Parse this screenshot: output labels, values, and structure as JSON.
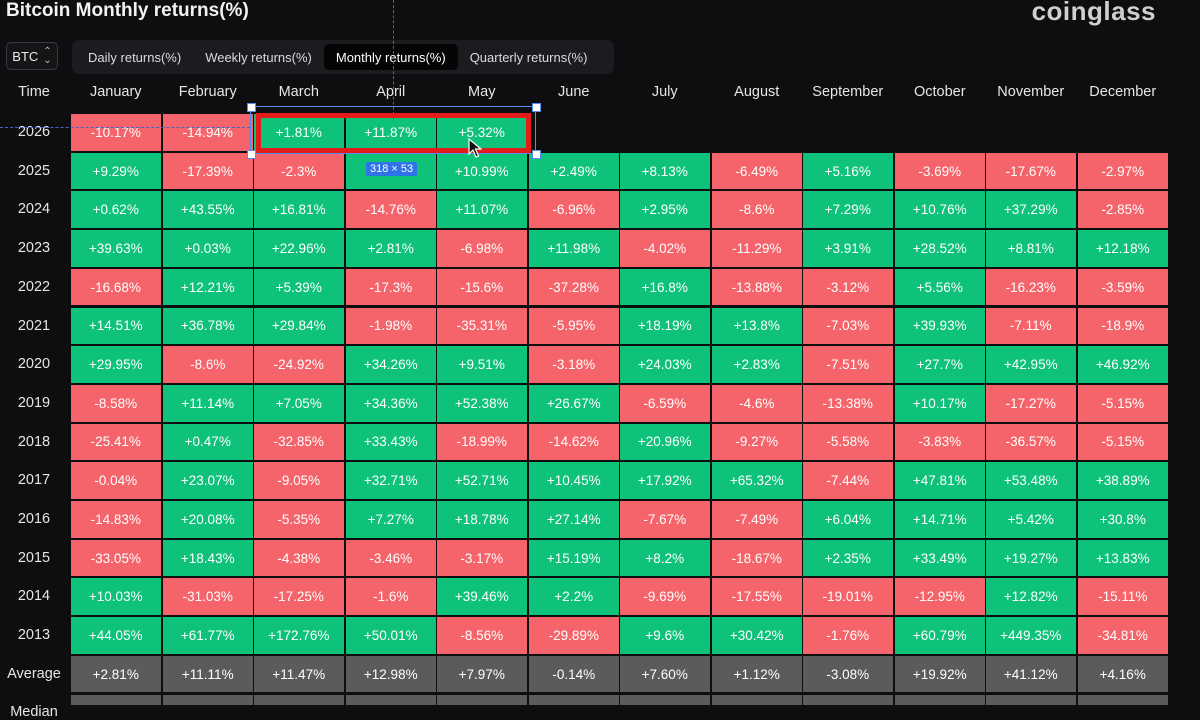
{
  "header": {
    "title": "Bitcoin Monthly returns(%)",
    "brand": "coinglass"
  },
  "asset_select": {
    "value": "BTC"
  },
  "tabs": [
    {
      "label": "Daily returns(%)",
      "active": false
    },
    {
      "label": "Weekly returns(%)",
      "active": false
    },
    {
      "label": "Monthly returns(%)",
      "active": true
    },
    {
      "label": "Quarterly returns(%)",
      "active": false
    }
  ],
  "table": {
    "year_header": "Time",
    "months": [
      "January",
      "February",
      "March",
      "April",
      "May",
      "June",
      "July",
      "August",
      "September",
      "October",
      "November",
      "December"
    ],
    "rows": [
      {
        "year": "2026",
        "values": [
          "-10.17%",
          "-14.94%",
          "+1.81%",
          "+11.87%",
          "+5.32%",
          "",
          "",
          "",
          "",
          "",
          "",
          ""
        ]
      },
      {
        "year": "2025",
        "values": [
          "+9.29%",
          "-17.39%",
          "-2.3%",
          "",
          "+10.99%",
          "+2.49%",
          "+8.13%",
          "-6.49%",
          "+5.16%",
          "-3.69%",
          "-17.67%",
          "-2.97%"
        ]
      },
      {
        "year": "2024",
        "values": [
          "+0.62%",
          "+43.55%",
          "+16.81%",
          "-14.76%",
          "+11.07%",
          "-6.96%",
          "+2.95%",
          "-8.6%",
          "+7.29%",
          "+10.76%",
          "+37.29%",
          "-2.85%"
        ]
      },
      {
        "year": "2023",
        "values": [
          "+39.63%",
          "+0.03%",
          "+22.96%",
          "+2.81%",
          "-6.98%",
          "+11.98%",
          "-4.02%",
          "-11.29%",
          "+3.91%",
          "+28.52%",
          "+8.81%",
          "+12.18%"
        ]
      },
      {
        "year": "2022",
        "values": [
          "-16.68%",
          "+12.21%",
          "+5.39%",
          "-17.3%",
          "-15.6%",
          "-37.28%",
          "+16.8%",
          "-13.88%",
          "-3.12%",
          "+5.56%",
          "-16.23%",
          "-3.59%"
        ]
      },
      {
        "year": "2021",
        "values": [
          "+14.51%",
          "+36.78%",
          "+29.84%",
          "-1.98%",
          "-35.31%",
          "-5.95%",
          "+18.19%",
          "+13.8%",
          "-7.03%",
          "+39.93%",
          "-7.11%",
          "-18.9%"
        ]
      },
      {
        "year": "2020",
        "values": [
          "+29.95%",
          "-8.6%",
          "-24.92%",
          "+34.26%",
          "+9.51%",
          "-3.18%",
          "+24.03%",
          "+2.83%",
          "-7.51%",
          "+27.7%",
          "+42.95%",
          "+46.92%"
        ]
      },
      {
        "year": "2019",
        "values": [
          "-8.58%",
          "+11.14%",
          "+7.05%",
          "+34.36%",
          "+52.38%",
          "+26.67%",
          "-6.59%",
          "-4.6%",
          "-13.38%",
          "+10.17%",
          "-17.27%",
          "-5.15%"
        ]
      },
      {
        "year": "2018",
        "values": [
          "-25.41%",
          "+0.47%",
          "-32.85%",
          "+33.43%",
          "-18.99%",
          "-14.62%",
          "+20.96%",
          "-9.27%",
          "-5.58%",
          "-3.83%",
          "-36.57%",
          "-5.15%"
        ]
      },
      {
        "year": "2017",
        "values": [
          "-0.04%",
          "+23.07%",
          "-9.05%",
          "+32.71%",
          "+52.71%",
          "+10.45%",
          "+17.92%",
          "+65.32%",
          "-7.44%",
          "+47.81%",
          "+53.48%",
          "+38.89%"
        ]
      },
      {
        "year": "2016",
        "values": [
          "-14.83%",
          "+20.08%",
          "-5.35%",
          "+7.27%",
          "+18.78%",
          "+27.14%",
          "-7.67%",
          "-7.49%",
          "+6.04%",
          "+14.71%",
          "+5.42%",
          "+30.8%"
        ]
      },
      {
        "year": "2015",
        "values": [
          "-33.05%",
          "+18.43%",
          "-4.38%",
          "-3.46%",
          "-3.17%",
          "+15.19%",
          "+8.2%",
          "-18.67%",
          "+2.35%",
          "+33.49%",
          "+19.27%",
          "+13.83%"
        ]
      },
      {
        "year": "2014",
        "values": [
          "+10.03%",
          "-31.03%",
          "-17.25%",
          "-1.6%",
          "+39.46%",
          "+2.2%",
          "-9.69%",
          "-17.55%",
          "-19.01%",
          "-12.95%",
          "+12.82%",
          "-15.11%"
        ]
      },
      {
        "year": "2013",
        "values": [
          "+44.05%",
          "+61.77%",
          "+172.76%",
          "+50.01%",
          "-8.56%",
          "-29.89%",
          "+9.6%",
          "+30.42%",
          "-1.76%",
          "+60.79%",
          "+449.35%",
          "-34.81%"
        ]
      }
    ],
    "average": {
      "label": "Average",
      "values": [
        "+2.81%",
        "+11.11%",
        "+11.47%",
        "+12.98%",
        "+7.97%",
        "-0.14%",
        "+7.60%",
        "+1.12%",
        "-3.08%",
        "+19.92%",
        "+41.12%",
        "+4.16%"
      ]
    },
    "median": {
      "label": "Median"
    }
  },
  "overlay": {
    "size_badge": "318 × 53",
    "cursor_icon": "arrow-cursor-icon"
  },
  "colors": {
    "positive": "#0ec27a",
    "negative": "#f4646a",
    "average": "#5b5b5e",
    "background": "#0e0e10"
  }
}
